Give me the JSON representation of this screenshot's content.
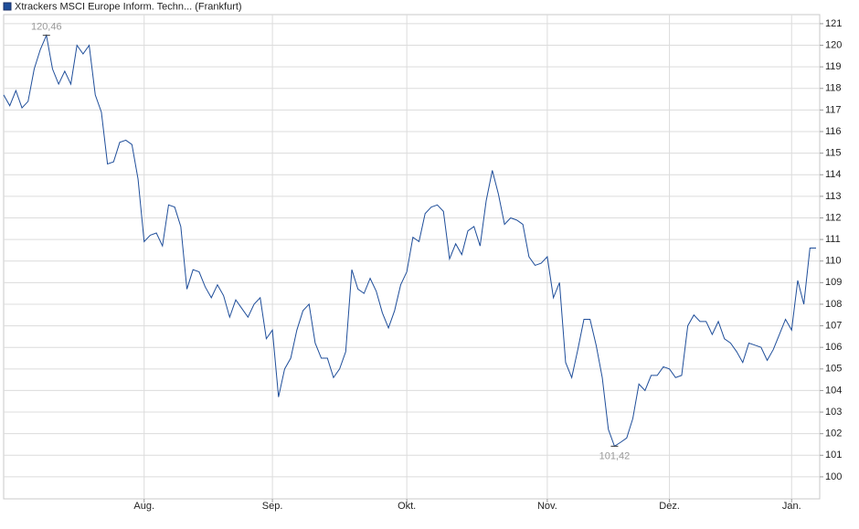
{
  "chart_data": {
    "type": "line",
    "series": [
      {
        "name": "Xtrackers MSCI Europe Inform. Techn... (Frankfurt)",
        "color": "#1f4e9a",
        "values": [
          117.7,
          117.2,
          117.9,
          117.1,
          117.4,
          118.9,
          119.8,
          120.46,
          118.9,
          118.2,
          118.8,
          118.2,
          120.0,
          119.6,
          120.0,
          117.7,
          116.9,
          114.5,
          114.6,
          115.5,
          115.6,
          115.4,
          113.8,
          110.9,
          111.2,
          111.3,
          110.7,
          112.6,
          112.5,
          111.6,
          108.7,
          109.6,
          109.5,
          108.8,
          108.3,
          108.9,
          108.4,
          107.4,
          108.2,
          107.8,
          107.4,
          108.0,
          108.3,
          106.4,
          106.8,
          103.7,
          105.0,
          105.5,
          106.8,
          107.7,
          108.0,
          106.2,
          105.5,
          105.5,
          104.6,
          105.0,
          105.8,
          109.6,
          108.7,
          108.5,
          109.2,
          108.6,
          107.6,
          106.9,
          107.7,
          108.9,
          109.5,
          111.1,
          110.9,
          112.2,
          112.5,
          112.6,
          112.3,
          110.1,
          110.8,
          110.3,
          111.4,
          111.6,
          110.7,
          112.8,
          114.2,
          113.1,
          111.7,
          112.0,
          111.9,
          111.7,
          110.2,
          109.8,
          109.9,
          110.2,
          108.3,
          109.0,
          105.3,
          104.6,
          105.9,
          107.3,
          107.3,
          106.1,
          104.6,
          102.2,
          101.42,
          101.6,
          101.8,
          102.7,
          104.3,
          104.0,
          104.7,
          104.7,
          105.1,
          105.0,
          104.6,
          104.7,
          107.0,
          107.5,
          107.2,
          107.2,
          106.6,
          107.2,
          106.4,
          106.2,
          105.8,
          105.3,
          106.2,
          106.1,
          106.0,
          105.4,
          105.9,
          106.6,
          107.3,
          106.8,
          109.1,
          108.0,
          110.6,
          110.6
        ]
      }
    ],
    "categories": [
      null,
      null,
      null,
      null,
      null,
      null,
      null,
      null,
      null,
      null,
      null,
      null,
      null,
      null,
      null,
      null,
      null,
      null,
      null,
      null,
      null,
      null,
      null,
      "Aug.",
      null,
      null,
      null,
      null,
      null,
      null,
      null,
      null,
      null,
      null,
      null,
      null,
      null,
      null,
      null,
      null,
      null,
      null,
      null,
      null,
      "Sep.",
      null,
      null,
      null,
      null,
      null,
      null,
      null,
      null,
      null,
      null,
      null,
      null,
      null,
      null,
      null,
      null,
      null,
      null,
      null,
      null,
      null,
      "Okt.",
      null,
      null,
      null,
      null,
      null,
      null,
      null,
      null,
      null,
      null,
      null,
      null,
      null,
      null,
      null,
      null,
      null,
      null,
      null,
      null,
      null,
      null,
      "Nov.",
      null,
      null,
      null,
      null,
      null,
      null,
      null,
      null,
      null,
      null,
      null,
      null,
      null,
      null,
      null,
      null,
      null,
      null,
      null,
      "Dez.",
      null,
      null,
      null,
      null,
      null,
      null,
      null,
      null,
      null,
      null,
      null,
      null,
      null,
      null,
      null,
      null,
      null,
      null,
      null,
      "Jan.",
      null,
      null,
      null,
      null
    ],
    "annotations": [
      {
        "value": 120.46,
        "label": "120,46"
      },
      {
        "value": 101.42,
        "label": "101,42"
      }
    ],
    "ylim": [
      98.98,
      121.42
    ],
    "yticks": [
      100,
      101,
      102,
      103,
      104,
      105,
      106,
      107,
      108,
      109,
      110,
      111,
      112,
      113,
      114,
      115,
      116,
      117,
      118,
      119,
      120,
      121
    ],
    "grid": true
  }
}
